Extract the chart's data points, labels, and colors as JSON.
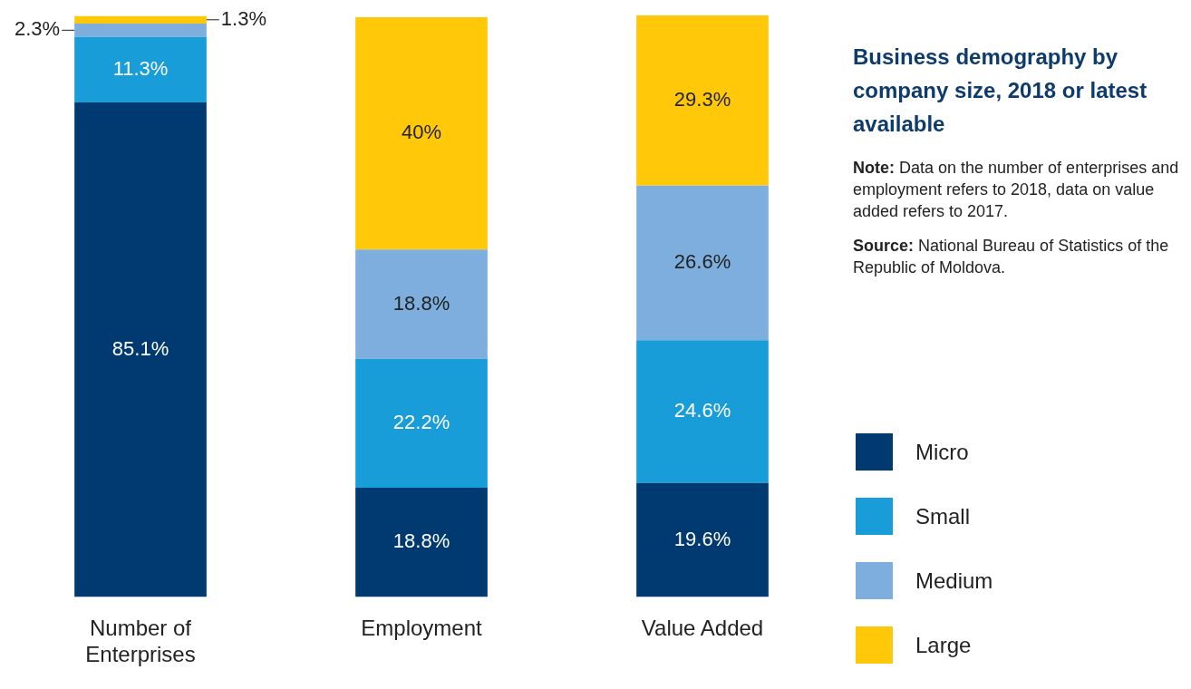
{
  "chart_data": {
    "type": "bar",
    "stacked": true,
    "title": "Business demography by company size, 2018 or latest available",
    "annotations": [
      "Note: Data on the number of enterprises and employment refers to 2018, data on value added refers to 2017.",
      "Source: National Bureau of Statistics of the Republic of Moldova."
    ],
    "categories": [
      "Number of Enterprises",
      "Employment",
      "Value Added"
    ],
    "ylim": [
      0,
      100.1
    ],
    "series": [
      {
        "name": "Micro",
        "color": "#003a70",
        "values": [
          85.1,
          18.8,
          19.6
        ],
        "value_labels": [
          "85.1%",
          "18.8%",
          "19.6%"
        ]
      },
      {
        "name": "Small",
        "color": "#189dd9",
        "values": [
          11.3,
          22.2,
          24.6
        ],
        "value_labels": [
          "11.3%",
          "22.2%",
          "24.6%"
        ]
      },
      {
        "name": "Medium",
        "color": "#7eaedd",
        "values": [
          2.3,
          18.8,
          26.6
        ],
        "value_labels": [
          "2.3%",
          "18.8%",
          "26.6%"
        ]
      },
      {
        "name": "Large",
        "color": "#ffc90a",
        "values": [
          1.3,
          40,
          29.3
        ],
        "value_labels": [
          "1.3%",
          "40%",
          "29.3%"
        ]
      }
    ],
    "legend": "right",
    "tick_labels": "x"
  }
}
